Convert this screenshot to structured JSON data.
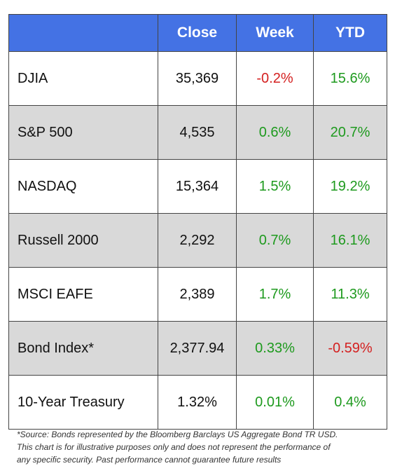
{
  "header": {
    "close": "Close",
    "week": "Week",
    "ytd": "YTD"
  },
  "rows": [
    {
      "name": "DJIA",
      "close": "35,369",
      "week": "-0.2%",
      "ytd": "15.6%"
    },
    {
      "name": "S&P 500",
      "close": "4,535",
      "week": "0.6%",
      "ytd": "20.7%"
    },
    {
      "name": "NASDAQ",
      "close": "15,364",
      "week": "1.5%",
      "ytd": "19.2%"
    },
    {
      "name": "Russell 2000",
      "close": "2,292",
      "week": "0.7%",
      "ytd": "16.1%"
    },
    {
      "name": "MSCI EAFE",
      "close": "2,389",
      "week": "1.7%",
      "ytd": "11.3%"
    },
    {
      "name": "Bond Index*",
      "close": "2,377.94",
      "week": "0.33%",
      "ytd": "-0.59%"
    },
    {
      "name": "10-Year Treasury",
      "close": "1.32%",
      "week": "0.01%",
      "ytd": "0.4%"
    }
  ],
  "footnote": {
    "line1": "*Source: Bonds represented by the Bloomberg Barclays US Aggregate Bond TR USD.",
    "line2": "This chart is for illustrative purposes only and does not represent the performance of",
    "line3": "any specific security. Past performance cannot guarantee future results"
  },
  "colors": {
    "header_bg": "#4472e4",
    "shaded_row": "#d9d9d9",
    "negative": "#d42020",
    "positive": "#1e9a1e"
  }
}
